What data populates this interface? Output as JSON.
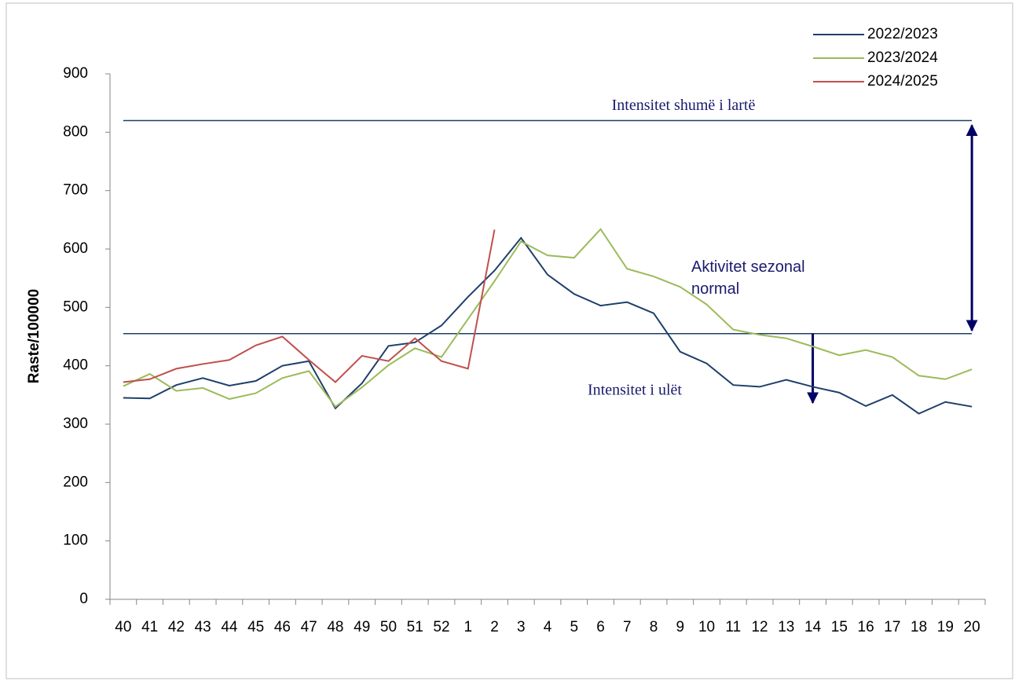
{
  "chart_data": {
    "type": "line",
    "y_label": "Raste/100000",
    "categories": [
      "40",
      "41",
      "42",
      "43",
      "44",
      "45",
      "46",
      "47",
      "48",
      "49",
      "50",
      "51",
      "52",
      "1",
      "2",
      "3",
      "4",
      "5",
      "6",
      "7",
      "8",
      "9",
      "10",
      "11",
      "12",
      "13",
      "14",
      "15",
      "16",
      "17",
      "18",
      "19",
      "20"
    ],
    "series": [
      {
        "name": "2022/2023",
        "color": "#1f3f6b",
        "values": [
          345,
          344,
          367,
          379,
          366,
          374,
          400,
          408,
          327,
          370,
          434,
          440,
          469,
          518,
          563,
          619,
          556,
          523,
          503,
          509,
          490,
          424,
          404,
          367,
          364,
          376,
          364,
          354,
          331,
          350,
          318,
          338,
          330
        ]
      },
      {
        "name": "2023/2024",
        "color": "#9bbb59",
        "values": [
          365,
          386,
          357,
          362,
          343,
          353,
          379,
          391,
          330,
          363,
          401,
          430,
          415,
          480,
          545,
          613,
          589,
          585,
          634,
          566,
          553,
          535,
          505,
          462,
          453,
          447,
          433,
          418,
          427,
          415,
          383,
          377,
          394
        ]
      },
      {
        "name": "2024/2025",
        "color": "#c0504d",
        "values": [
          372,
          377,
          395,
          403,
          410,
          435,
          450,
          410,
          372,
          417,
          408,
          447,
          408,
          395,
          633,
          null,
          null,
          null,
          null,
          null,
          null,
          null,
          null,
          null,
          null,
          null,
          null,
          null,
          null,
          null,
          null,
          null,
          null
        ]
      }
    ],
    "reference_lines": [
      {
        "value": 820,
        "label": "Intensitet shumë i lartë",
        "color": "#1f3f6b"
      },
      {
        "value": 455,
        "label": "Intensitet i ulët",
        "color": "#1f3f6b"
      }
    ],
    "annotation": "Aktivitet sezonal normal",
    "ylim": [
      0,
      900
    ],
    "yticks": [
      0,
      100,
      200,
      300,
      400,
      500,
      600,
      700,
      800,
      900
    ],
    "legend": "top-right"
  }
}
